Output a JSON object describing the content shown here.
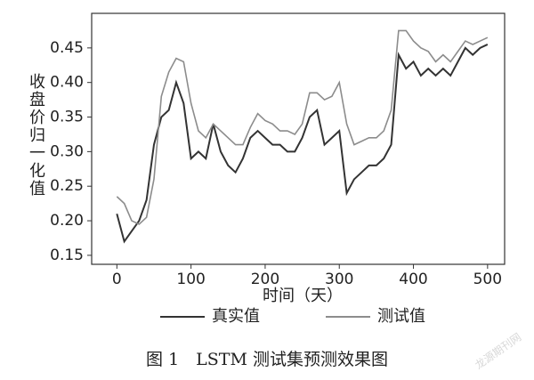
{
  "chart_data": {
    "type": "line",
    "x_label": "时间（天）",
    "y_label": "收盘价归一化值",
    "caption": "图 1　LSTM 测试集预测效果图",
    "watermark": "龙源期刊网",
    "x": [
      0,
      10,
      20,
      30,
      40,
      50,
      60,
      70,
      80,
      90,
      100,
      110,
      120,
      130,
      140,
      150,
      160,
      170,
      180,
      190,
      200,
      210,
      220,
      230,
      240,
      250,
      260,
      270,
      280,
      290,
      300,
      310,
      320,
      330,
      340,
      350,
      360,
      370,
      380,
      390,
      400,
      410,
      420,
      430,
      440,
      450,
      460,
      470,
      480,
      490,
      500
    ],
    "series": [
      {
        "name": "真实值",
        "color": "#333333",
        "values": [
          0.21,
          0.17,
          0.185,
          0.2,
          0.23,
          0.31,
          0.35,
          0.36,
          0.4,
          0.37,
          0.29,
          0.3,
          0.29,
          0.34,
          0.3,
          0.28,
          0.27,
          0.29,
          0.32,
          0.33,
          0.32,
          0.31,
          0.31,
          0.3,
          0.3,
          0.32,
          0.35,
          0.36,
          0.31,
          0.32,
          0.33,
          0.24,
          0.26,
          0.27,
          0.28,
          0.28,
          0.29,
          0.31,
          0.44,
          0.42,
          0.43,
          0.41,
          0.42,
          0.41,
          0.42,
          0.41,
          0.43,
          0.45,
          0.44,
          0.45,
          0.455
        ]
      },
      {
        "name": "测试值",
        "color": "#8c8c8c",
        "values": [
          0.235,
          0.225,
          0.2,
          0.195,
          0.205,
          0.26,
          0.38,
          0.415,
          0.435,
          0.43,
          0.37,
          0.33,
          0.32,
          0.34,
          0.33,
          0.32,
          0.31,
          0.31,
          0.335,
          0.355,
          0.345,
          0.34,
          0.33,
          0.33,
          0.325,
          0.34,
          0.385,
          0.385,
          0.375,
          0.38,
          0.4,
          0.34,
          0.31,
          0.315,
          0.32,
          0.32,
          0.33,
          0.36,
          0.475,
          0.475,
          0.46,
          0.45,
          0.445,
          0.43,
          0.44,
          0.43,
          0.445,
          0.46,
          0.455,
          0.46,
          0.465
        ]
      }
    ],
    "xlim": [
      -34,
      523
    ],
    "ylim": [
      0.137,
      0.5
    ],
    "xticks": [
      0,
      100,
      200,
      300,
      400,
      500
    ],
    "yticks": [
      0.15,
      {
        "value": 0.2,
        "label": "0.20"
      },
      0.25,
      {
        "value": 0.3,
        "label": "0.30"
      },
      0.35,
      {
        "value": 0.4,
        "label": "0.40"
      },
      0.45
    ]
  }
}
